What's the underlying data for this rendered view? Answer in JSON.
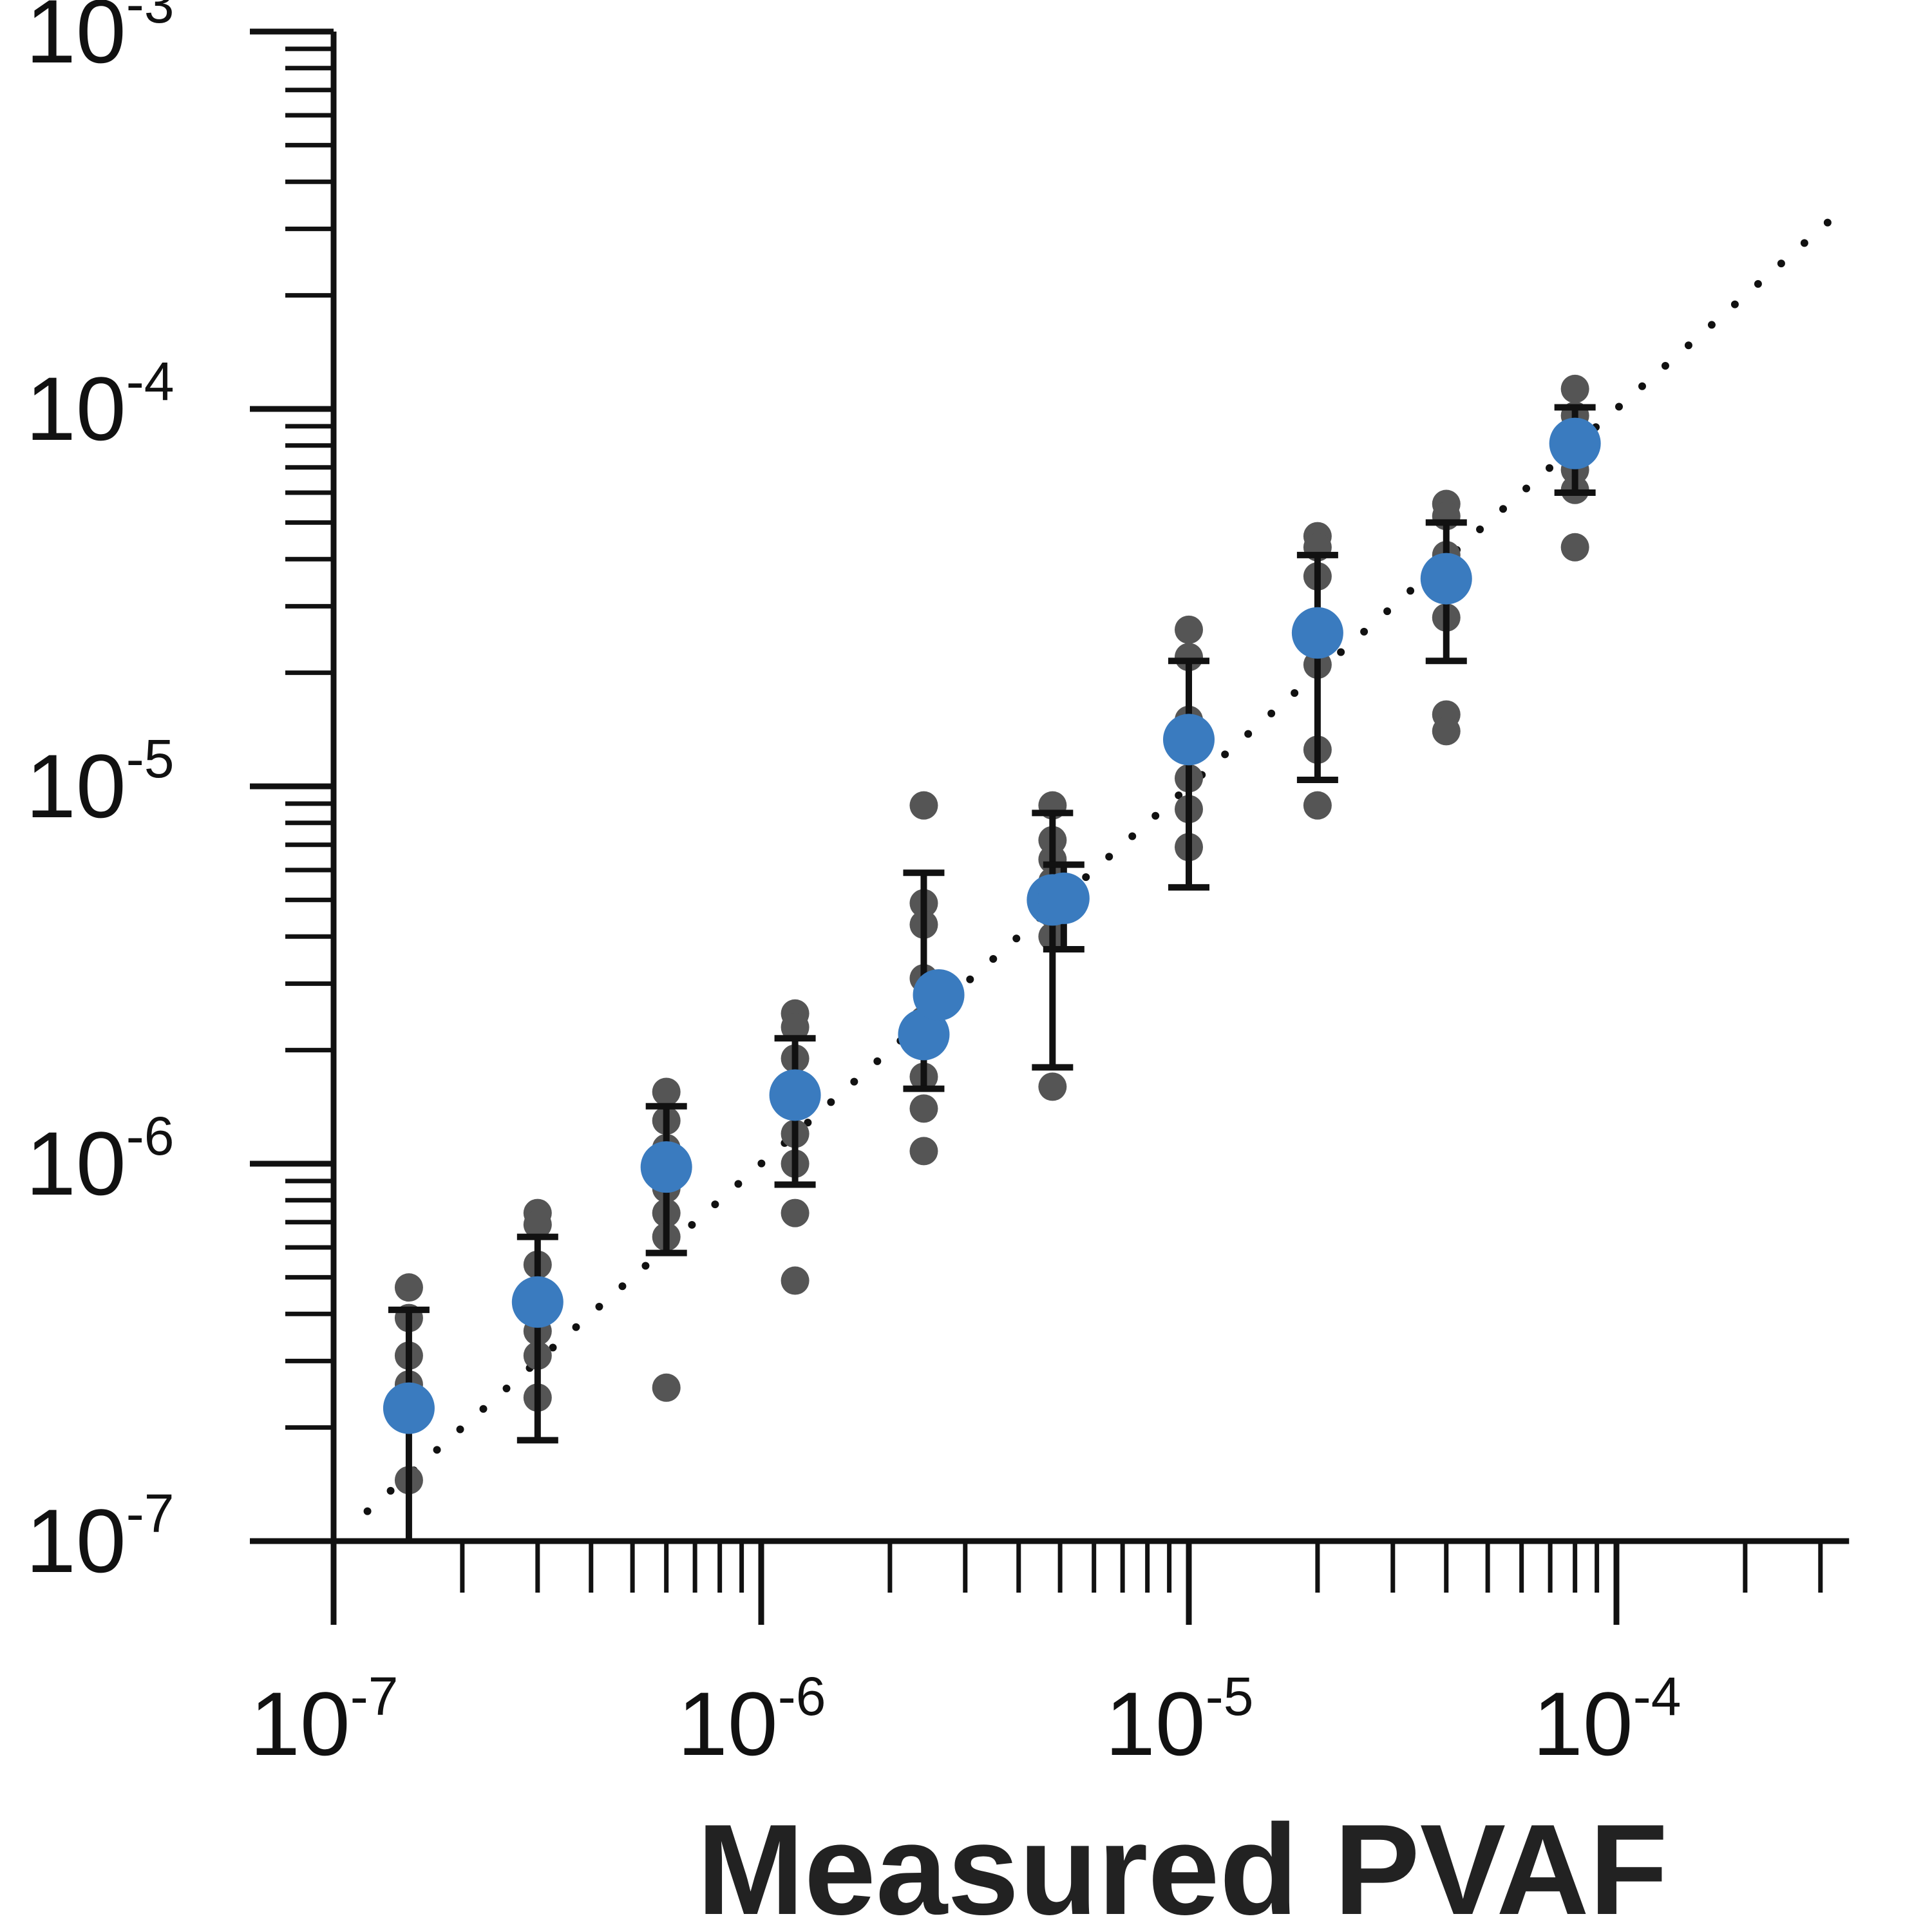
{
  "chart_data": {
    "type": "scatter",
    "title": "",
    "xlabel": "Measured PVAF",
    "ylabel": "",
    "x_scale": "log",
    "y_scale": "log",
    "xlim": [
      1e-07,
      0.00035
    ],
    "ylim": [
      1e-07,
      0.001
    ],
    "x_ticks": [
      {
        "base": "10",
        "exp": "-7"
      },
      {
        "base": "10",
        "exp": "-6"
      },
      {
        "base": "10",
        "exp": "-5"
      },
      {
        "base": "10",
        "exp": "-4"
      }
    ],
    "y_ticks": [
      {
        "base": "10",
        "exp": "-7"
      },
      {
        "base": "10",
        "exp": "-6"
      },
      {
        "base": "10",
        "exp": "-5"
      },
      {
        "base": "10",
        "exp": "-4"
      },
      {
        "base": "10",
        "exp": "-3"
      }
    ],
    "grid": false,
    "legend": "none",
    "reference_line": {
      "style": "dotted",
      "slope": 1,
      "from": [
        1.2e-07,
        1.2e-07
      ],
      "to": [
        0.00035,
        0.00035
      ]
    },
    "colors": {
      "mean": "#3a7bbf",
      "replicate": "#555555",
      "error_bar": "#111111",
      "axis": "#111111"
    },
    "groups": [
      {
        "x": 1.5e-07,
        "mean": 2.25e-07,
        "err_low": 1e-07,
        "err_high": 4.1e-07,
        "replicates": [
          4.7e-07,
          3.9e-07,
          3.1e-07,
          2.6e-07,
          1.45e-07
        ]
      },
      {
        "x": 3e-07,
        "mean": 4.3e-07,
        "err_low": 1.85e-07,
        "err_high": 6.4e-07,
        "replicates": [
          7.4e-07,
          6.9e-07,
          5.4e-07,
          3.6e-07,
          3.1e-07,
          2.4e-07
        ]
      },
      {
        "x": 6e-07,
        "mean": 9.8e-07,
        "err_low": 5.8e-07,
        "err_high": 1.42e-06,
        "replicates": [
          1.55e-06,
          1.3e-06,
          1.1e-06,
          8.6e-07,
          7.4e-07,
          6.4e-07,
          2.55e-07
        ]
      },
      {
        "x": 1.2e-06,
        "mean": 1.52e-06,
        "err_low": 8.8e-07,
        "err_high": 2.15e-06,
        "replicates": [
          2.5e-06,
          2.3e-06,
          1.9e-06,
          1.2e-06,
          1e-06,
          7.4e-07,
          4.9e-07
        ]
      },
      {
        "x": 2.4e-06,
        "mean": 2.2e-06,
        "err_low": 1.58e-06,
        "err_high": 5.9e-06,
        "replicates": [
          8.9e-06,
          4.9e-06,
          4.3e-06,
          3.1e-06,
          2.4e-06,
          1.7e-06,
          1.4e-06,
          1.08e-06
        ]
      },
      {
        "x": 2.6e-06,
        "mean": 2.8e-06,
        "err_low": 2.8e-06,
        "err_high": 2.8e-06,
        "replicates": []
      },
      {
        "x": 4.8e-06,
        "mean": 5e-06,
        "err_low": 1.8e-06,
        "err_high": 8.5e-06,
        "replicates": [
          8.9e-06,
          7.2e-06,
          6.4e-06,
          5.6e-06,
          4.6e-06,
          4e-06,
          1.6e-06
        ]
      },
      {
        "x": 5.1e-06,
        "mean": 5.05e-06,
        "err_low": 3.7e-06,
        "err_high": 6.2e-06,
        "replicates": []
      },
      {
        "x": 1e-05,
        "mean": 1.33e-05,
        "err_low": 5.4e-06,
        "err_high": 2.15e-05,
        "replicates": [
          2.6e-05,
          2.2e-05,
          1.5e-05,
          1.05e-05,
          8.7e-06,
          6.9e-06
        ]
      },
      {
        "x": 2e-05,
        "mean": 2.55e-05,
        "err_low": 1.04e-05,
        "err_high": 4.1e-05,
        "replicates": [
          4.6e-05,
          4.3e-05,
          3.6e-05,
          2.1e-05,
          1.25e-05,
          8.9e-06
        ]
      },
      {
        "x": 4e-05,
        "mean": 3.55e-05,
        "err_low": 2.15e-05,
        "err_high": 5e-05,
        "replicates": [
          5.6e-05,
          5.2e-05,
          4.1e-05,
          2.8e-05,
          1.55e-05,
          1.4e-05
        ]
      },
      {
        "x": 8e-05,
        "mean": 8.1e-05,
        "err_low": 6e-05,
        "err_high": 0.000101,
        "replicates": [
          0.000113,
          9.6e-05,
          6.9e-05,
          6.1e-05,
          4.3e-05
        ]
      }
    ]
  }
}
